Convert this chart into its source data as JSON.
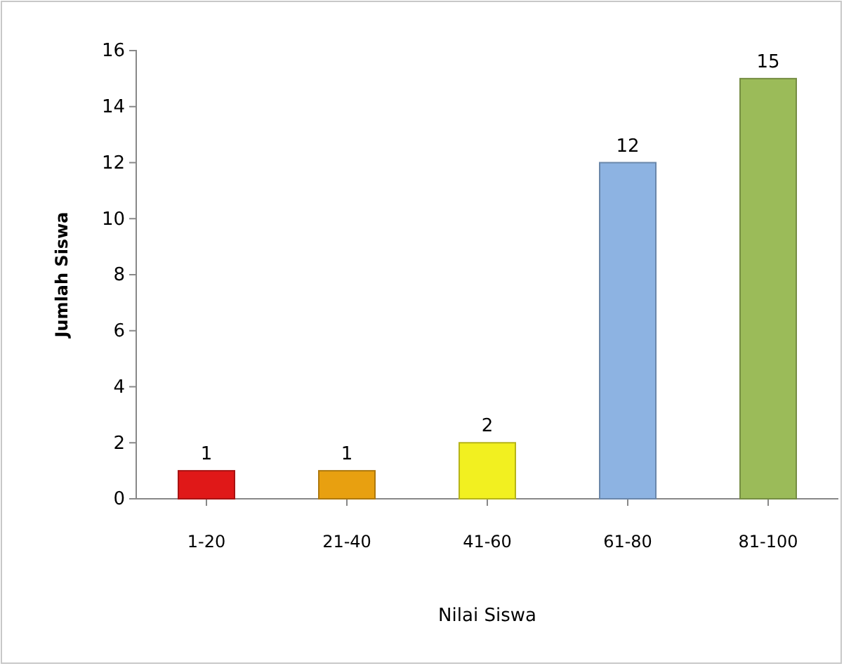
{
  "chart_data": {
    "type": "bar",
    "xlabel": "Nilai Siswa",
    "ylabel": "Jumlah Siswa",
    "categories": [
      "1-20",
      "21-40",
      "41-60",
      "61-80",
      "81-100"
    ],
    "values": [
      1,
      1,
      2,
      12,
      15
    ],
    "colors": [
      "#e01818",
      "#e8a010",
      "#f2f020",
      "#8db3e2",
      "#9bbb59"
    ],
    "ylim": [
      0,
      16
    ],
    "yticks": [
      0,
      2,
      4,
      6,
      8,
      10,
      12,
      14,
      16
    ],
    "grid": false,
    "data_labels": true
  }
}
